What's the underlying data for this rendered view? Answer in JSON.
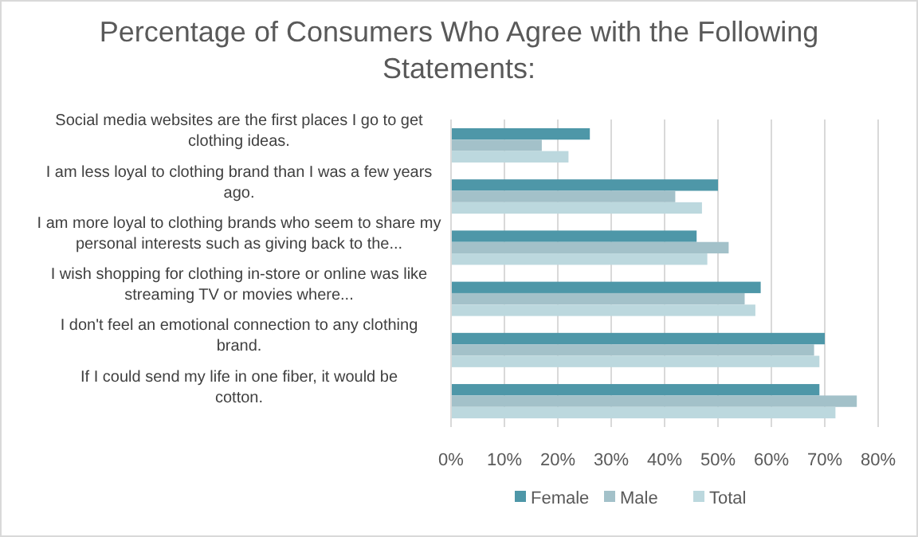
{
  "chart_data": {
    "type": "bar",
    "orientation": "horizontal",
    "title": "Percentage of Consumers Who Agree with the Following Statements:",
    "categories": [
      "Social media websites are the first places I go to get clothing ideas.",
      "I am less loyal to clothing brand than I was a few years ago.",
      "I am more loyal to clothing brands who seem to share my personal interests such as giving back to the...",
      "I wish shopping for clothing in-store or online was like streaming TV or movies where...",
      "I don't feel an emotional connection to any clothing brand.",
      "If I could send my life in one fiber, it would be cotton."
    ],
    "series": [
      {
        "name": "Female",
        "color": "#4e97a8",
        "values": [
          26,
          50,
          46,
          58,
          70,
          69
        ]
      },
      {
        "name": "Male",
        "color": "#a3c1c9",
        "values": [
          17,
          42,
          52,
          55,
          68,
          76
        ]
      },
      {
        "name": "Total",
        "color": "#bcd8de",
        "values": [
          22,
          47,
          48,
          57,
          69,
          72
        ]
      }
    ],
    "xlim": [
      0,
      80
    ],
    "xticks": [
      {
        "value": 0,
        "label": "0%"
      },
      {
        "value": 10,
        "label": "10%"
      },
      {
        "value": 20,
        "label": "20%"
      },
      {
        "value": 30,
        "label": "30%"
      },
      {
        "value": 40,
        "label": "40%"
      },
      {
        "value": 50,
        "label": "50%"
      },
      {
        "value": 60,
        "label": "60%"
      },
      {
        "value": 70,
        "label": "70%"
      },
      {
        "value": 80,
        "label": "80%"
      }
    ],
    "grid": "x",
    "legend": "bottom"
  }
}
